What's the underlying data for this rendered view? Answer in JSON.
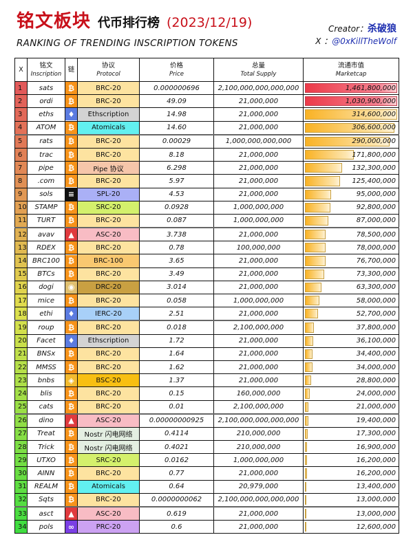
{
  "header": {
    "title_main": "铭文板块",
    "title_sub": "代币排行榜",
    "date": "(2023/12/19)",
    "subtitle": "RANKING OF TRENDING INSCRIPTION TOKENS",
    "creator_label": "Creator：",
    "creator_name": "杀破狼",
    "x_label": "X ：",
    "x_handle": "@0xKillTheWolf"
  },
  "columns": {
    "rank": "X",
    "inscription_cn": "铭文",
    "inscription_en": "Inscription",
    "chain_cn": "链",
    "protocol_cn": "协议",
    "protocol_en": "Protocol",
    "price_cn": "价格",
    "price_en": "Price",
    "supply_cn": "总量",
    "supply_en": "Total Supply",
    "mcap_cn": "流通市值",
    "mcap_en": "Marketcap"
  },
  "chain_icons": {
    "bitcoin": {
      "icon": "bitcoin-icon",
      "color": "#f7931a",
      "glyph": "₿"
    },
    "ethereum": {
      "icon": "ethereum-icon",
      "color": "#5b7be0",
      "glyph": "♦"
    },
    "solana": {
      "icon": "solana-icon",
      "color": "#111111",
      "glyph": "≡"
    },
    "avalanche": {
      "icon": "avalanche-icon",
      "color": "#e03a3e",
      "glyph": "▲"
    },
    "dogecoin": {
      "icon": "dogecoin-icon",
      "color": "#e0c070",
      "glyph": "◉"
    },
    "bnb": {
      "icon": "bnb-icon",
      "color": "#f3ba2f",
      "glyph": "◈"
    },
    "polygon": {
      "icon": "polygon-icon",
      "color": "#7b3fe4",
      "glyph": "∞"
    }
  },
  "protocol_colors": {
    "BRC-20": "#fde3a0",
    "Ethscription": "#d3d3d3",
    "Atomicals": "#62f0f0",
    "Pipe 协议": "#f6c6aa",
    "SPL-20": "#aab0f6",
    "SRC-20": "#d4f06c",
    "ASC-20": "#f8bcc4",
    "BRC-100": "#f9c870",
    "DRC-20": "#c9a042",
    "IERC-20": "#a8d0f8",
    "BSC-20": "#f8bf12",
    "Nostr 闪电网络": "#e4efe2",
    "PRC-20": "#cca2f2"
  },
  "rows": [
    {
      "rank": "1",
      "name": "sats",
      "chain": "bitcoin",
      "protocol": "BRC-20",
      "price": "0.000000696",
      "supply": "2,100,000,000,000,000",
      "mcap": "1,461,800,000",
      "mcap_value": 1461800000
    },
    {
      "rank": "2",
      "name": "ordi",
      "chain": "bitcoin",
      "protocol": "BRC-20",
      "price": "49.09",
      "supply": "21,000,000",
      "mcap": "1,030,900,000",
      "mcap_value": 1030900000
    },
    {
      "rank": "3",
      "name": "eths",
      "chain": "ethereum",
      "protocol": "Ethscription",
      "price": "14.98",
      "supply": "21,000,000",
      "mcap": "314,600,000",
      "mcap_value": 314600000
    },
    {
      "rank": "4",
      "name": "ATOM",
      "chain": "bitcoin",
      "protocol": "Atomicals",
      "price": "14.60",
      "supply": "21,000,000",
      "mcap": "306,600,000",
      "mcap_value": 306600000
    },
    {
      "rank": "5",
      "name": "rats",
      "chain": "bitcoin",
      "protocol": "BRC-20",
      "price": "0.00029",
      "supply": "1,000,000,000,000",
      "mcap": "290,000,000",
      "mcap_value": 290000000
    },
    {
      "rank": "6",
      "name": "trac",
      "chain": "bitcoin",
      "protocol": "BRC-20",
      "price": "8.18",
      "supply": "21,000,000",
      "mcap": "171,800,000",
      "mcap_value": 171800000
    },
    {
      "rank": "7",
      "name": "pipe",
      "chain": "bitcoin",
      "protocol": "Pipe 协议",
      "price": "6.298",
      "supply": "21,000,000",
      "mcap": "132,300,000",
      "mcap_value": 132300000
    },
    {
      "rank": "8",
      "name": ".com",
      "chain": "bitcoin",
      "protocol": "BRC-20",
      "price": "5.97",
      "supply": "21,000,000",
      "mcap": "125,400,000",
      "mcap_value": 125400000
    },
    {
      "rank": "9",
      "name": "sols",
      "chain": "solana",
      "protocol": "SPL-20",
      "price": "4.53",
      "supply": "21,000,000",
      "mcap": "95,000,000",
      "mcap_value": 95000000
    },
    {
      "rank": "10",
      "name": "STAMP",
      "chain": "bitcoin",
      "protocol": "SRC-20",
      "price": "0.0928",
      "supply": "1,000,000,000",
      "mcap": "92,800,000",
      "mcap_value": 92800000
    },
    {
      "rank": "11",
      "name": "TURT",
      "chain": "bitcoin",
      "protocol": "BRC-20",
      "price": "0.087",
      "supply": "1,000,000,000",
      "mcap": "87,000,000",
      "mcap_value": 87000000
    },
    {
      "rank": "12",
      "name": "avav",
      "chain": "avalanche",
      "protocol": "ASC-20",
      "price": "3.738",
      "supply": "21,000,000",
      "mcap": "78,500,000",
      "mcap_value": 78500000
    },
    {
      "rank": "13",
      "name": "RDEX",
      "chain": "bitcoin",
      "protocol": "BRC-20",
      "price": "0.78",
      "supply": "100,000,000",
      "mcap": "78,000,000",
      "mcap_value": 78000000
    },
    {
      "rank": "14",
      "name": "BRC100",
      "chain": "bitcoin",
      "protocol": "BRC-100",
      "price": "3.65",
      "supply": "21,000,000",
      "mcap": "76,700,000",
      "mcap_value": 76700000
    },
    {
      "rank": "15",
      "name": "BTCs",
      "chain": "bitcoin",
      "protocol": "BRC-20",
      "price": "3.49",
      "supply": "21,000,000",
      "mcap": "73,300,000",
      "mcap_value": 73300000
    },
    {
      "rank": "16",
      "name": "dogi",
      "chain": "dogecoin",
      "protocol": "DRC-20",
      "price": "3.014",
      "supply": "21,000,000",
      "mcap": "63,300,000",
      "mcap_value": 63300000
    },
    {
      "rank": "17",
      "name": "mice",
      "chain": "bitcoin",
      "protocol": "BRC-20",
      "price": "0.058",
      "supply": "1,000,000,000",
      "mcap": "58,000,000",
      "mcap_value": 58000000
    },
    {
      "rank": "18",
      "name": "ethi",
      "chain": "ethereum",
      "protocol": "IERC-20",
      "price": "2.51",
      "supply": "21,000,000",
      "mcap": "52,700,000",
      "mcap_value": 52700000
    },
    {
      "rank": "19",
      "name": "roup",
      "chain": "bitcoin",
      "protocol": "BRC-20",
      "price": "0.018",
      "supply": "2,100,000,000",
      "mcap": "37,800,000",
      "mcap_value": 37800000
    },
    {
      "rank": "20",
      "name": "Facet",
      "chain": "ethereum",
      "protocol": "Ethscription",
      "price": "1.72",
      "supply": "21,000,000",
      "mcap": "36,100,000",
      "mcap_value": 36100000
    },
    {
      "rank": "21",
      "name": "BNSx",
      "chain": "bitcoin",
      "protocol": "BRC-20",
      "price": "1.64",
      "supply": "21,000,000",
      "mcap": "34,400,000",
      "mcap_value": 34400000
    },
    {
      "rank": "22",
      "name": "MMSS",
      "chain": "bitcoin",
      "protocol": "BRC-20",
      "price": "1.62",
      "supply": "21,000,000",
      "mcap": "34,000,000",
      "mcap_value": 34000000
    },
    {
      "rank": "23",
      "name": "bnbs",
      "chain": "bnb",
      "protocol": "BSC-20",
      "price": "1.37",
      "supply": "21,000,000",
      "mcap": "28,800,000",
      "mcap_value": 28800000
    },
    {
      "rank": "24",
      "name": "blis",
      "chain": "bitcoin",
      "protocol": "BRC-20",
      "price": "0.15",
      "supply": "160,000,000",
      "mcap": "24,000,000",
      "mcap_value": 24000000
    },
    {
      "rank": "25",
      "name": "cats",
      "chain": "bitcoin",
      "protocol": "BRC-20",
      "price": "0.01",
      "supply": "2,100,000,000",
      "mcap": "21,000,000",
      "mcap_value": 21000000
    },
    {
      "rank": "26",
      "name": "dino",
      "chain": "avalanche",
      "protocol": "ASC-20",
      "price": "0.00000000925",
      "supply": "2,100,000,000,000,000",
      "mcap": "19,400,000",
      "mcap_value": 19400000
    },
    {
      "rank": "27",
      "name": "Treat",
      "chain": "bitcoin",
      "protocol": "Nostr 闪电网络",
      "price": "0.4114",
      "supply": "210,000,000",
      "mcap": "17,300,000",
      "mcap_value": 17300000
    },
    {
      "rank": "28",
      "name": "Trick",
      "chain": "bitcoin",
      "protocol": "Nostr 闪电网络",
      "price": "0.4021",
      "supply": "210,000,000",
      "mcap": "16,900,000",
      "mcap_value": 16900000
    },
    {
      "rank": "29",
      "name": "UTXO",
      "chain": "bitcoin",
      "protocol": "SRC-20",
      "price": "0.0162",
      "supply": "1,000,000,000",
      "mcap": "16,200,000",
      "mcap_value": 16200000
    },
    {
      "rank": "30",
      "name": "AINN",
      "chain": "bitcoin",
      "protocol": "BRC-20",
      "price": "0.77",
      "supply": "21,000,000",
      "mcap": "16,200,000",
      "mcap_value": 16200000
    },
    {
      "rank": "31",
      "name": "REALM",
      "chain": "bitcoin",
      "protocol": "Atomicals",
      "price": "0.64",
      "supply": "20,979,000",
      "mcap": "13,400,000",
      "mcap_value": 13400000
    },
    {
      "rank": "32",
      "name": "Sqts",
      "chain": "bitcoin",
      "protocol": "BRC-20",
      "price": "0.0000000062",
      "supply": "2,100,000,000,000,000",
      "mcap": "13,000,000",
      "mcap_value": 13000000
    },
    {
      "rank": "33",
      "name": "asct",
      "chain": "avalanche",
      "protocol": "ASC-20",
      "price": "0.619",
      "supply": "21,000,000",
      "mcap": "13,000,000",
      "mcap_value": 13000000
    },
    {
      "rank": "34",
      "name": "pols",
      "chain": "polygon",
      "protocol": "PRC-20",
      "price": "0.6",
      "supply": "21,000,000",
      "mcap": "12,600,000",
      "mcap_value": 12600000
    }
  ]
}
